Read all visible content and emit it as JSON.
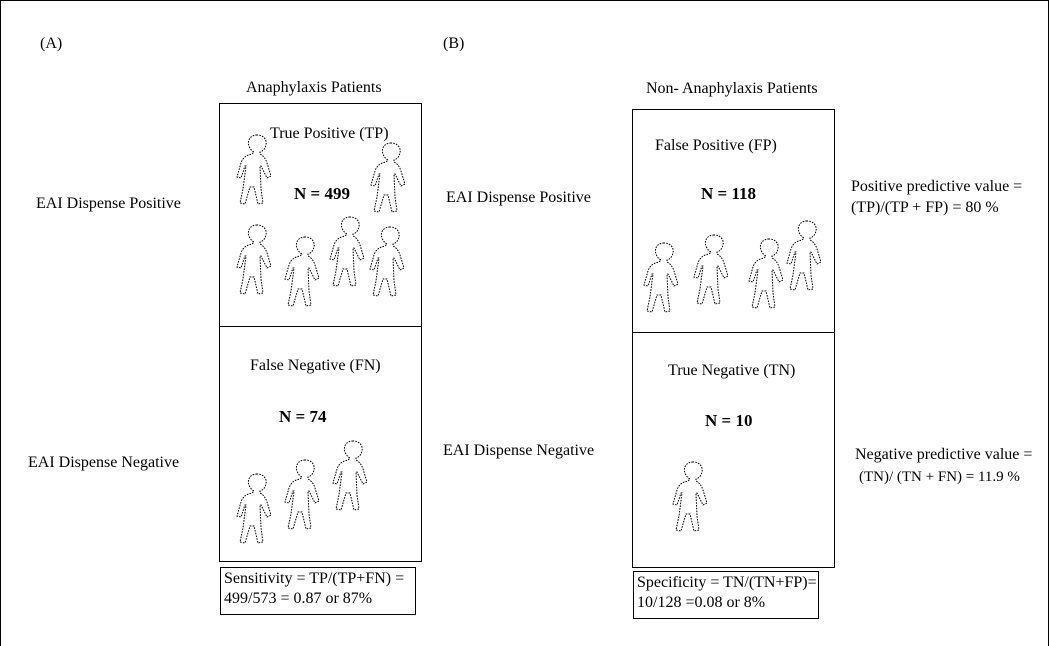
{
  "panel_a": {
    "label": "(A)",
    "title": "Anaphylaxis Patients",
    "row_positive": "EAI Dispense Positive",
    "row_negative": "EAI Dispense Negative",
    "cell_top": {
      "label": "True Positive (TP)",
      "count": "N = 499",
      "icons": 6
    },
    "cell_bottom": {
      "label": "False Negative (FN)",
      "count": "N = 74",
      "icons": 3
    },
    "summary": [
      "Sensitivity = TP/(TP+FN) =",
      "499/573 = 0.87 or 87%"
    ]
  },
  "panel_b": {
    "label": "(B)",
    "title": "Non- Anaphylaxis Patients",
    "row_positive": "EAI Dispense Positive",
    "row_negative": "EAI Dispense Negative",
    "cell_top": {
      "label": "False Positive (FP)",
      "count": "N = 118",
      "icons": 4
    },
    "cell_bottom": {
      "label": "True Negative (TN)",
      "count": "N = 10",
      "icons": 1
    },
    "summary": [
      "Specificity = TN/(TN+FP)=",
      "10/128 =0.08 or 8%"
    ]
  },
  "ppv": [
    "Positive predictive value =",
    "(TP)/(TP + FP) = 80 %"
  ],
  "npv": [
    "Negative predictive value =",
    "(TN)/ (TN + FN) = 11.9 %"
  ],
  "icon_name": "person-outline-icon"
}
